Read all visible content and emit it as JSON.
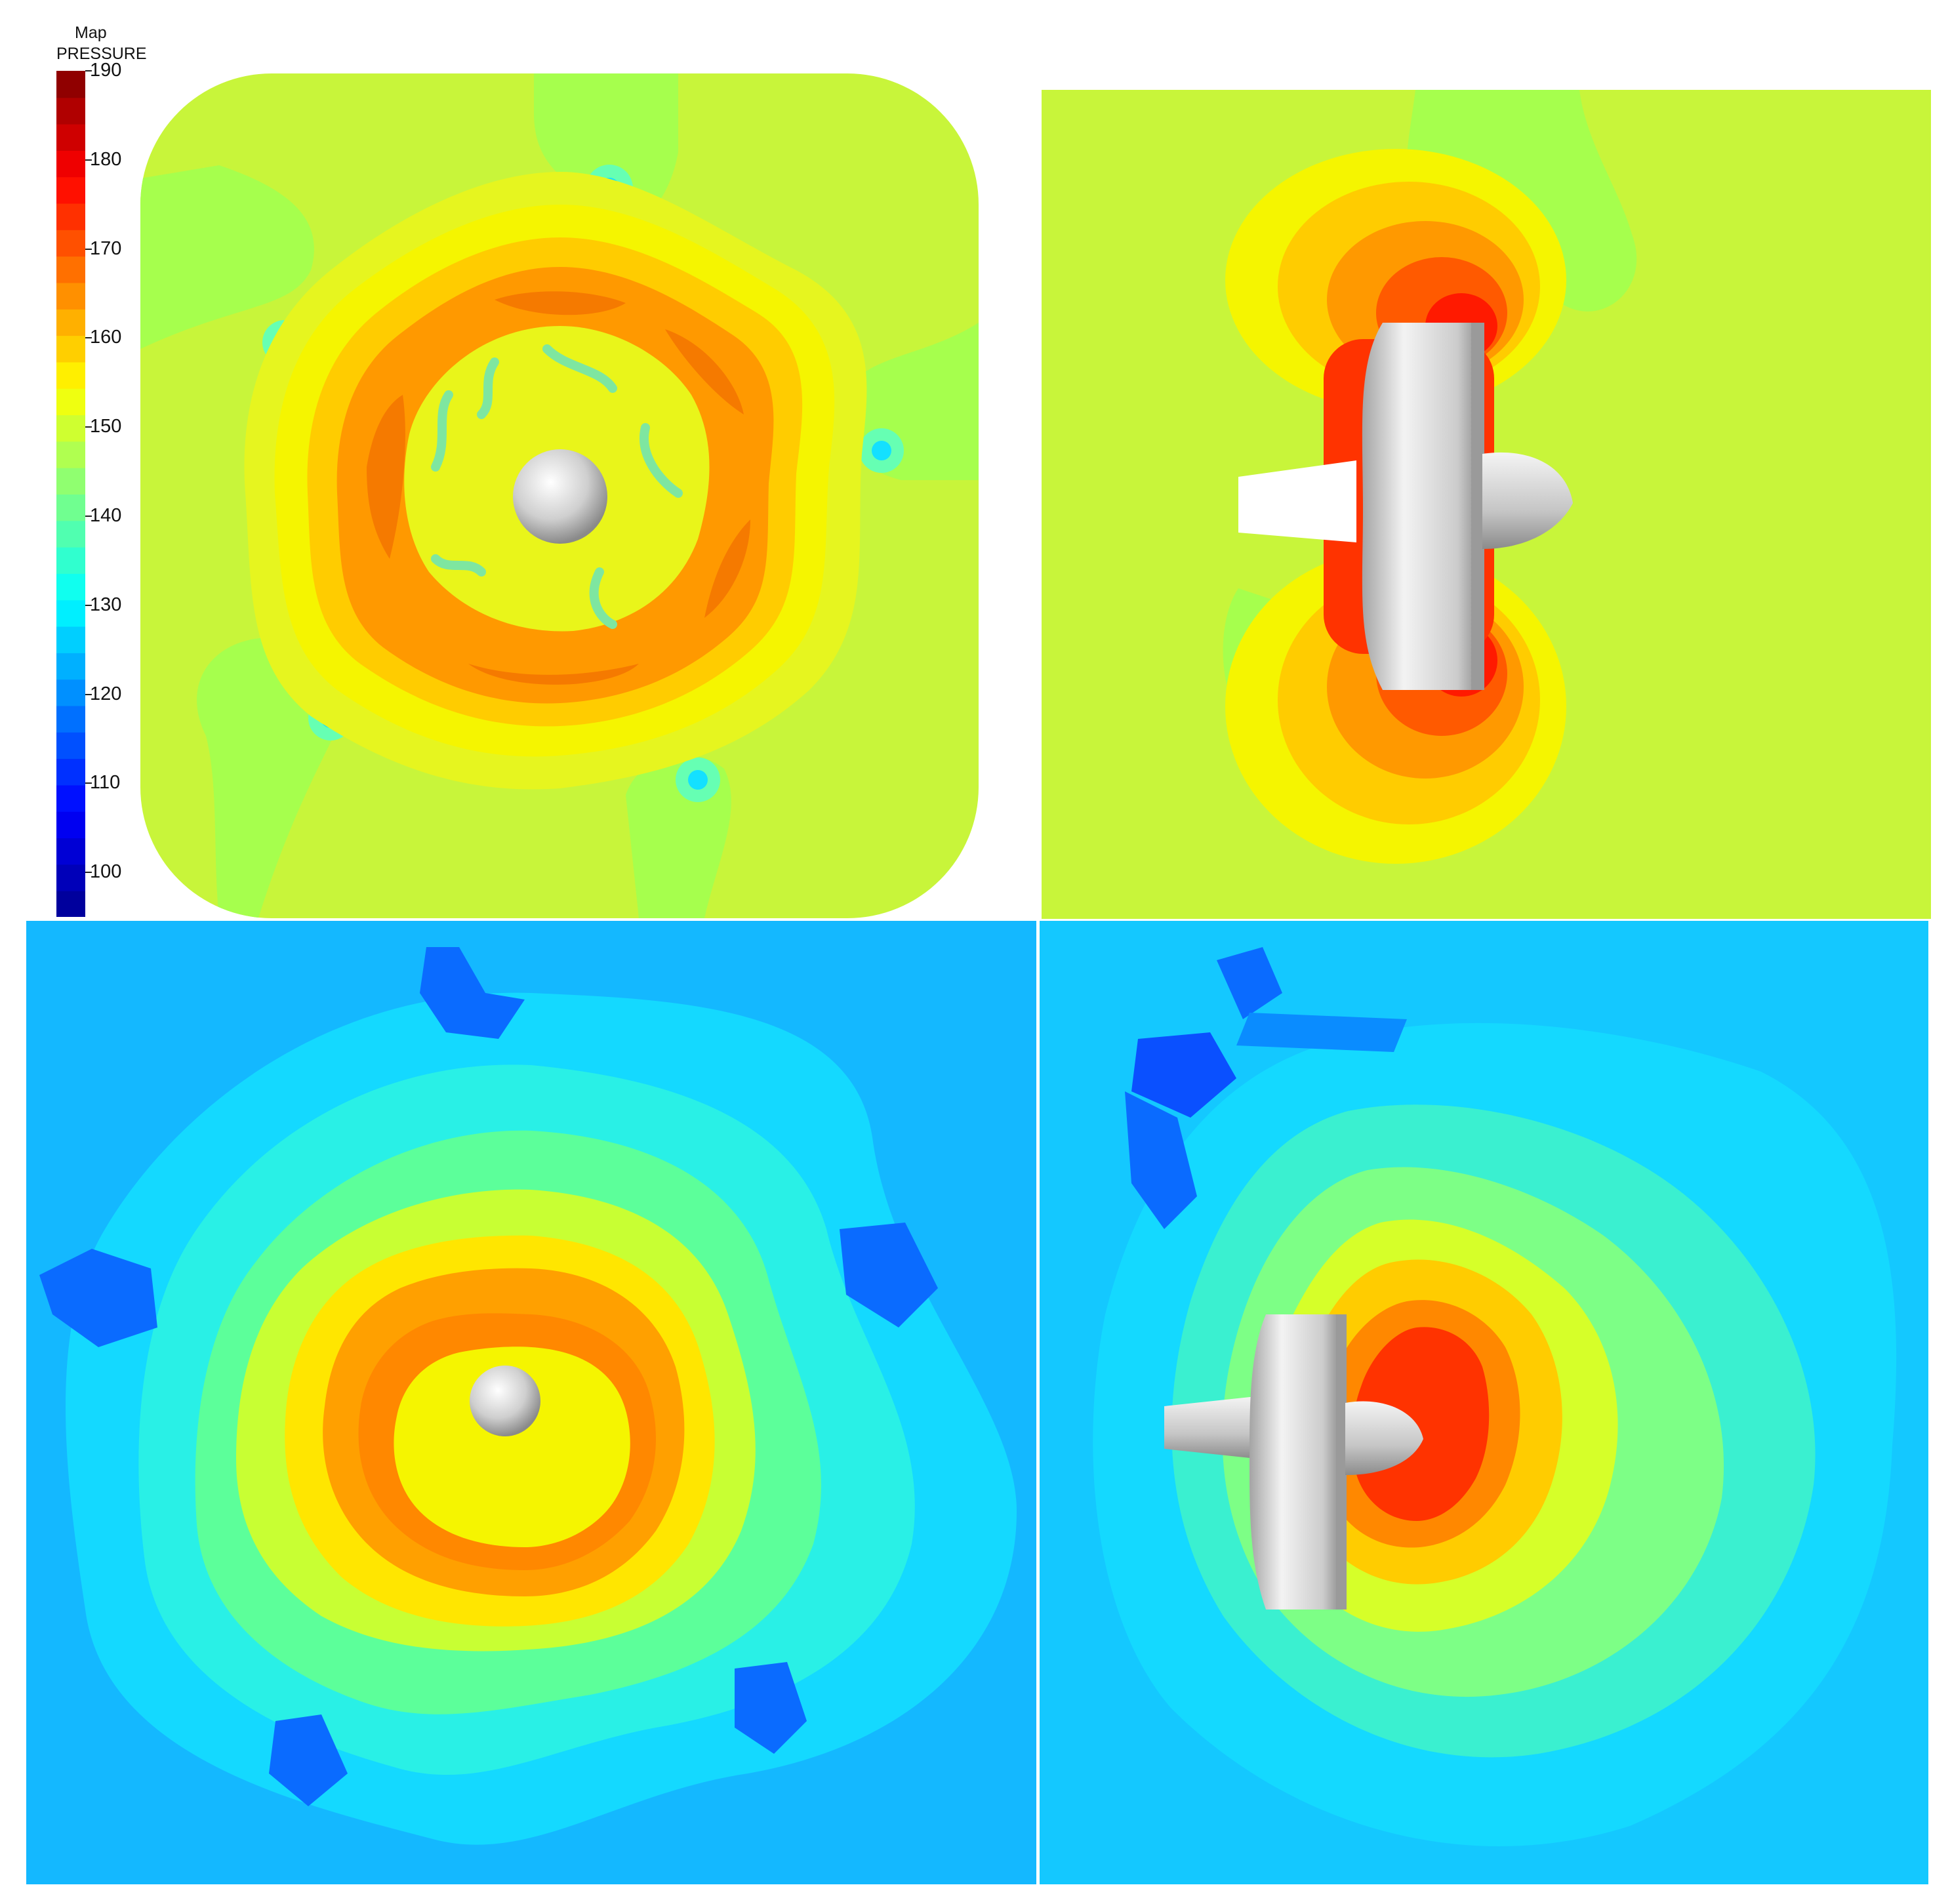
{
  "legend": {
    "title_line1": "Map",
    "title_line2": "PRESSURE",
    "range": [
      95,
      190
    ],
    "ticks": [
      "190",
      "180",
      "170",
      "160",
      "150",
      "140",
      "130",
      "120",
      "110",
      "100"
    ],
    "tick_values": [
      190,
      180,
      170,
      160,
      150,
      140,
      130,
      120,
      110,
      100
    ],
    "colormap": [
      "#00008f",
      "#0000ff",
      "#0080ff",
      "#00ffff",
      "#80ff80",
      "#ffff00",
      "#ff8000",
      "#ff0000",
      "#800000"
    ]
  },
  "panels": [
    {
      "id": "top-left",
      "view": "front",
      "background": "#c8f53a"
    },
    {
      "id": "top-right",
      "view": "side",
      "background": "#c8f53a"
    },
    {
      "id": "bottom-left",
      "view": "front",
      "background": "#14c8ff"
    },
    {
      "id": "bottom-right",
      "view": "side",
      "background": "#14c8ff"
    }
  ],
  "colors": {
    "low": "#0a3cff",
    "cyan": "#14c8ff",
    "green": "#a6ff4d",
    "yellow_green": "#c8f53a",
    "yellow": "#f5f500",
    "orange": "#ff9900",
    "dark_orange": "#f57a00",
    "red": "#ff2a00",
    "body_gray": "#d8d8d8"
  }
}
